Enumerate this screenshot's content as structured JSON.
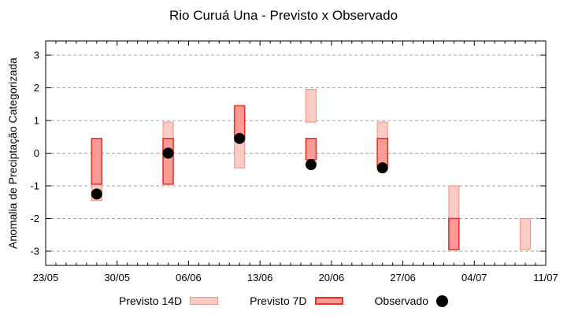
{
  "chart_data": {
    "type": "bar",
    "variant": "floating-range-bars-with-observed-scatter",
    "title": "Rio Curuá Una - Previsto x Observado",
    "ylabel": "Anomalia de Preciptação Categorizada",
    "xlabel": "",
    "grid": "horizontal-dashed",
    "legend_position": "bottom-outside",
    "ylim": [
      -3.4,
      3.45
    ],
    "yticks": [
      3,
      2,
      1,
      0,
      -1,
      -2,
      -3
    ],
    "x_axis": {
      "total_days": 49,
      "minor_tick_every_days": 1,
      "major_ticks": [
        {
          "day": 0,
          "label": "23/05"
        },
        {
          "day": 7,
          "label": "30/05"
        },
        {
          "day": 14,
          "label": "06/06"
        },
        {
          "day": 21,
          "label": "13/06"
        },
        {
          "day": 28,
          "label": "20/06"
        },
        {
          "day": 35,
          "label": "27/06"
        },
        {
          "day": 42,
          "label": "04/07"
        },
        {
          "day": 49,
          "label": "11/07"
        }
      ]
    },
    "series": [
      {
        "name": "Previsto 14D",
        "kind": "range-bar",
        "fill": "#fdcbc6",
        "stroke": "#f0958a",
        "points": [
          {
            "date": "28/05",
            "day": 5,
            "low": -1.45,
            "high": 0.45
          },
          {
            "date": "04/06",
            "day": 12,
            "low": -0.95,
            "high": 0.95
          },
          {
            "date": "11/06",
            "day": 19,
            "low": -0.45,
            "high": 1.45
          },
          {
            "date": "18/06",
            "day": 26,
            "low": 0.95,
            "high": 1.95
          },
          {
            "date": "25/06",
            "day": 33,
            "low": -0.45,
            "high": 0.95
          },
          {
            "date": "02/07",
            "day": 40,
            "low": -2.0,
            "high": -1.0
          },
          {
            "date": "09/07",
            "day": 47,
            "low": -2.95,
            "high": -2.0
          }
        ]
      },
      {
        "name": "Previsto 7D",
        "kind": "range-bar",
        "fill": "#ff9b97",
        "stroke": "#e8332a",
        "points": [
          {
            "date": "28/05",
            "day": 5,
            "low": -0.95,
            "high": 0.45
          },
          {
            "date": "04/06",
            "day": 12,
            "low": -0.95,
            "high": 0.45
          },
          {
            "date": "11/06",
            "day": 19,
            "low": 0.45,
            "high": 1.45
          },
          {
            "date": "18/06",
            "day": 26,
            "low": -0.2,
            "high": 0.45
          },
          {
            "date": "25/06",
            "day": 33,
            "low": -0.45,
            "high": 0.45
          },
          {
            "date": "02/07",
            "day": 40,
            "low": -2.95,
            "high": -2.0
          }
        ]
      },
      {
        "name": "Observado",
        "kind": "scatter",
        "fill": "#000000",
        "points": [
          {
            "date": "28/05",
            "day": 5,
            "value": -1.25
          },
          {
            "date": "04/06",
            "day": 12,
            "value": 0.0
          },
          {
            "date": "11/06",
            "day": 19,
            "value": 0.45
          },
          {
            "date": "18/06",
            "day": 26,
            "value": -0.35
          },
          {
            "date": "25/06",
            "day": 33,
            "value": -0.45
          }
        ]
      }
    ],
    "axis_color": "#000000",
    "gridline_color": "#a3a3a3"
  }
}
